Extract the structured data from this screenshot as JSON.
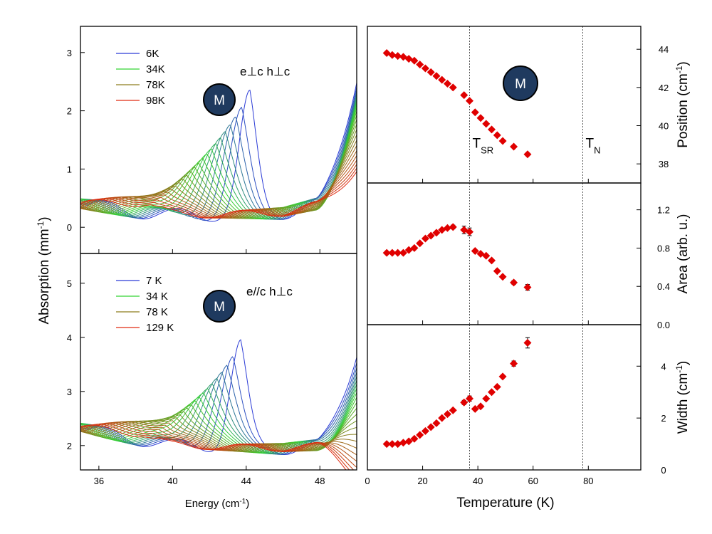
{
  "figure": {
    "left_xlabel": "Energy (cm",
    "left_xlabel_sup": "-1",
    "left_xlabel_close": ")",
    "left_ylabel": "Absorption (mm",
    "left_ylabel_sup": "-1",
    "left_ylabel_close": ")",
    "right_xlabel": "Temperature (K)",
    "marker_label": "M"
  },
  "colors": {
    "blue": "#2b3bd6",
    "green": "#33d433",
    "olive": "#8d7d1e",
    "red": "#e02a10",
    "marker_fill": "#e00000",
    "badge_fill": "#1f3a5f"
  },
  "chart_data": [
    {
      "id": "top-left",
      "type": "line",
      "annotation": "e⊥c h⊥c",
      "xlim": [
        35,
        50
      ],
      "ylim": [
        -0.45,
        3.45
      ],
      "x_ticks": [
        36,
        40,
        44,
        48
      ],
      "y_ticks": [
        0,
        1,
        2,
        3
      ],
      "legend": [
        {
          "label": "6K",
          "color": "blue"
        },
        {
          "label": "34K",
          "color": "green"
        },
        {
          "label": "78K",
          "color": "olive"
        },
        {
          "label": "98K",
          "color": "red"
        }
      ],
      "peak": {
        "T_start": 6,
        "T_end": 98,
        "center_start": 44.2,
        "center_end": 38.8,
        "amp_start": 2.0,
        "amp_end": 0.15,
        "width_start": 0.55,
        "width_end": 2.2
      },
      "baseline": {
        "y36": 0.35,
        "y40": 0.2,
        "y46": 0.25,
        "y48": 0.4,
        "edge_max": 2.45
      }
    },
    {
      "id": "bottom-left",
      "type": "line",
      "annotation": "e//c  h⊥c",
      "xlim": [
        35,
        50
      ],
      "ylim": [
        1.55,
        5.55
      ],
      "x_ticks": [
        36,
        40,
        44,
        48
      ],
      "y_ticks": [
        2,
        3,
        4,
        5
      ],
      "legend": [
        {
          "label": "7 K",
          "color": "blue"
        },
        {
          "label": "34 K",
          "color": "green"
        },
        {
          "label": "78 K",
          "color": "olive"
        },
        {
          "label": "129 K",
          "color": "red"
        }
      ],
      "peak": {
        "T_start": 7,
        "T_end": 129,
        "center_start": 43.7,
        "center_end": 38.5,
        "amp_start": 1.9,
        "amp_end": 0.1,
        "width_start": 0.55,
        "width_end": 2.5
      },
      "baseline": {
        "y36": 2.25,
        "y40": 2.0,
        "y46": 1.95,
        "y48": 2.0,
        "edge_max": 3.7
      }
    },
    {
      "id": "position",
      "type": "scatter",
      "ylabel": "Position (cm",
      "ylabel_sup": "-1",
      "ylabel_close": ")",
      "xlim": [
        0,
        99
      ],
      "ylim": [
        37,
        45.2
      ],
      "y_ticks": [
        38,
        40,
        42,
        44
      ],
      "x": [
        7,
        9,
        11,
        13,
        15,
        17,
        19,
        21,
        23,
        25,
        27,
        29,
        31,
        35,
        37,
        39,
        41,
        43,
        45,
        47,
        49,
        53,
        58
      ],
      "y": [
        43.8,
        43.7,
        43.65,
        43.6,
        43.5,
        43.4,
        43.2,
        43.0,
        42.8,
        42.6,
        42.4,
        42.2,
        42.0,
        41.6,
        41.3,
        40.7,
        40.4,
        40.1,
        39.8,
        39.5,
        39.2,
        38.9,
        38.5
      ],
      "vlines": [
        37,
        78
      ],
      "vline_labels": [
        {
          "text": "T",
          "sub": "SR",
          "x": 37,
          "y": 38.85
        },
        {
          "text": "T",
          "sub": "N",
          "x": 78,
          "y": 38.85
        }
      ]
    },
    {
      "id": "area",
      "type": "scatter",
      "ylabel": "Area (arb. u.)",
      "xlim": [
        0,
        99
      ],
      "ylim": [
        0,
        1.48
      ],
      "y_ticks": [
        0.0,
        0.4,
        0.8,
        1.2
      ],
      "y_tick_labels": [
        "0.0",
        "0.4",
        "0.8",
        "1.2"
      ],
      "x": [
        7,
        9,
        11,
        13,
        15,
        17,
        19,
        21,
        23,
        25,
        27,
        29,
        31,
        35,
        37,
        39,
        41,
        43,
        45,
        47,
        49,
        53,
        58
      ],
      "y": [
        0.75,
        0.75,
        0.75,
        0.75,
        0.78,
        0.8,
        0.85,
        0.9,
        0.93,
        0.96,
        0.99,
        1.01,
        1.02,
        0.99,
        0.97,
        0.77,
        0.74,
        0.72,
        0.67,
        0.56,
        0.5,
        0.44,
        0.39
      ],
      "yerr": [
        0,
        0,
        0,
        0,
        0,
        0,
        0,
        0,
        0,
        0,
        0,
        0,
        0.02,
        0.04,
        0.04,
        0,
        0,
        0,
        0,
        0,
        0,
        0.02,
        0.03
      ]
    },
    {
      "id": "width",
      "type": "scatter",
      "ylabel": "Width (cm",
      "ylabel_sup": "-1",
      "ylabel_close": ")",
      "xlabel": "Temperature (K)",
      "xlim": [
        0,
        99
      ],
      "ylim": [
        0,
        5.6
      ],
      "y_ticks": [
        0,
        2,
        4
      ],
      "x_ticks": [
        0,
        20,
        40,
        60,
        80
      ],
      "x": [
        7,
        9,
        11,
        13,
        15,
        17,
        19,
        21,
        23,
        25,
        27,
        29,
        31,
        35,
        37,
        39,
        41,
        43,
        45,
        47,
        49,
        53,
        58
      ],
      "y": [
        1.0,
        1.0,
        1.0,
        1.05,
        1.1,
        1.2,
        1.35,
        1.5,
        1.65,
        1.8,
        2.0,
        2.15,
        2.3,
        2.6,
        2.75,
        2.35,
        2.45,
        2.75,
        3.0,
        3.2,
        3.6,
        4.1,
        4.9
      ],
      "yerr": [
        0,
        0,
        0,
        0,
        0,
        0,
        0,
        0,
        0,
        0,
        0,
        0,
        0,
        0.08,
        0.1,
        0,
        0,
        0,
        0,
        0,
        0,
        0.1,
        0.2
      ]
    }
  ]
}
